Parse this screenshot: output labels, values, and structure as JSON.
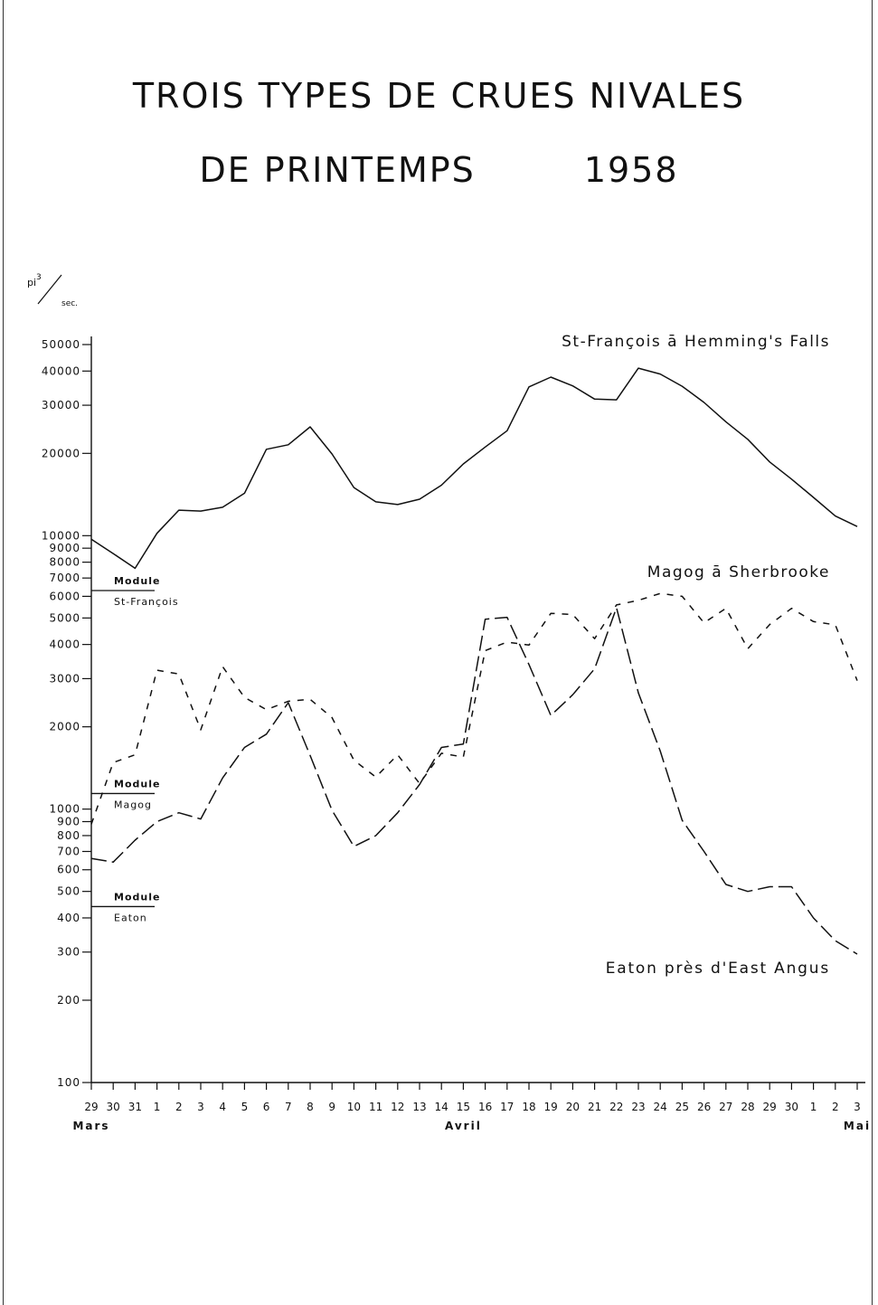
{
  "title": {
    "line1": "TROIS TYPES DE CRUES NIVALES",
    "line2a": "DE PRINTEMPS",
    "line2b": "1958"
  },
  "units": {
    "top": "pi",
    "sup": "3",
    "bottom": "sec."
  },
  "chart_data": {
    "type": "line",
    "yscale": "log",
    "ylim": [
      100,
      50000
    ],
    "y_tick_labels": [
      {
        "value": 50000,
        "label": "50000"
      },
      {
        "value": 40000,
        "label": "40000"
      },
      {
        "value": 30000,
        "label": "30000"
      },
      {
        "value": 20000,
        "label": "20000"
      },
      {
        "value": 10000,
        "label": "10000"
      },
      {
        "value": 9000,
        "label": "9000"
      },
      {
        "value": 8000,
        "label": "8000"
      },
      {
        "value": 7000,
        "label": "7000"
      },
      {
        "value": 6000,
        "label": "6000"
      },
      {
        "value": 5000,
        "label": "5000"
      },
      {
        "value": 4000,
        "label": "4000"
      },
      {
        "value": 3000,
        "label": "3000"
      },
      {
        "value": 2000,
        "label": "2000"
      },
      {
        "value": 1000,
        "label": "1000"
      },
      {
        "value": 900,
        "label": "900"
      },
      {
        "value": 800,
        "label": "800"
      },
      {
        "value": 700,
        "label": "700"
      },
      {
        "value": 600,
        "label": "600"
      },
      {
        "value": 500,
        "label": "500"
      },
      {
        "value": 400,
        "label": "400"
      },
      {
        "value": 300,
        "label": "300"
      },
      {
        "value": 200,
        "label": "200"
      },
      {
        "value": 100,
        "label": "100"
      }
    ],
    "x_tick_labels": [
      "29",
      "30",
      "31",
      "1",
      "2",
      "3",
      "4",
      "5",
      "6",
      "7",
      "8",
      "9",
      "10",
      "11",
      "12",
      "13",
      "14",
      "15",
      "16",
      "17",
      "18",
      "19",
      "20",
      "21",
      "22",
      "23",
      "24",
      "25",
      "26",
      "27",
      "28",
      "29",
      "30",
      "1",
      "2",
      "3"
    ],
    "month_labels": [
      {
        "label": "Mars",
        "at_index": 0
      },
      {
        "label": "Avril",
        "at_index": 17
      },
      {
        "label": "Mai",
        "at_index": 35
      }
    ],
    "series": [
      {
        "name": "St-François ā Hemming's Falls",
        "style": "solid",
        "values": [
          9700,
          8600,
          7600,
          10200,
          12400,
          12300,
          12700,
          14300,
          20700,
          21500,
          25000,
          19900,
          15000,
          13300,
          13000,
          13600,
          15300,
          18300,
          21100,
          24200,
          35000,
          38000,
          35300,
          31600,
          31400,
          41000,
          39000,
          35200,
          30700,
          26100,
          22500,
          18600,
          16100,
          13800,
          11800,
          10800
        ]
      },
      {
        "name": "Magog ā Sherbrooke",
        "style": "short-dash",
        "values": [
          880,
          1480,
          1580,
          3220,
          3120,
          1950,
          3320,
          2560,
          2310,
          2480,
          2520,
          2160,
          1510,
          1310,
          1580,
          1240,
          1600,
          1550,
          3800,
          4080,
          3980,
          5200,
          5150,
          4200,
          5580,
          5800,
          6150,
          6000,
          4800,
          5420,
          3860,
          4730,
          5420,
          4850,
          4720,
          2950
        ]
      },
      {
        "name": "Eaton près d'East Angus",
        "style": "long-dash",
        "values": [
          660,
          640,
          770,
          900,
          970,
          920,
          1300,
          1680,
          1880,
          2450,
          1570,
          990,
          730,
          800,
          970,
          1230,
          1680,
          1730,
          4950,
          5030,
          3380,
          2200,
          2620,
          3260,
          5450,
          2660,
          1630,
          910,
          700,
          530,
          500,
          520,
          520,
          400,
          330,
          295
        ]
      }
    ],
    "modules": [
      {
        "line1": "Module",
        "line2": "St-François",
        "value": 6300
      },
      {
        "line1": "Module",
        "line2": "Magog",
        "value": 1140
      },
      {
        "line1": "Module",
        "line2": "Eaton",
        "value": 440
      }
    ]
  }
}
